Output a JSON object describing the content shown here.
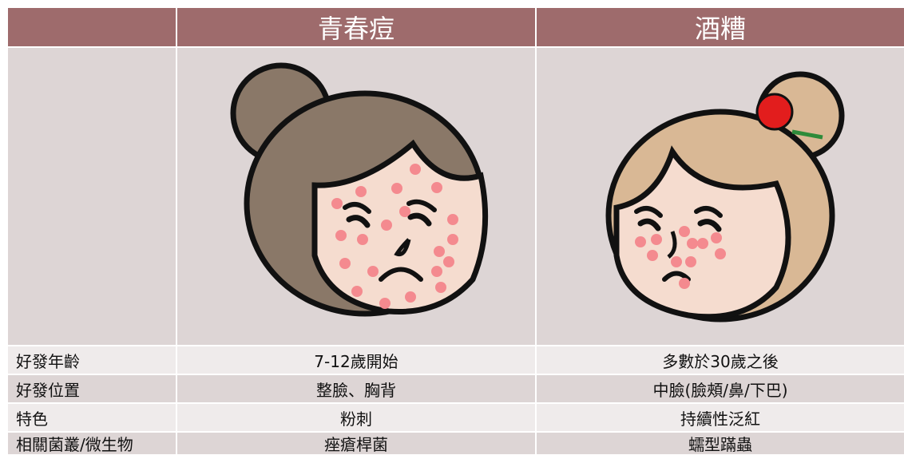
{
  "header": {
    "columns": [
      "青春痘",
      "酒糟"
    ]
  },
  "table": {
    "rows": [
      [
        "好發年齡",
        "7-12歲開始",
        "多數於30歲之後"
      ],
      [
        "好發位置",
        "整臉、胸背",
        "中臉(臉頰/鼻/下巴)"
      ],
      [
        "特色",
        "粉刺",
        "持續性泛紅"
      ],
      [
        "相關菌叢/微生物",
        "痤瘡桿菌",
        "蠕型蹣蟲"
      ]
    ]
  }
}
